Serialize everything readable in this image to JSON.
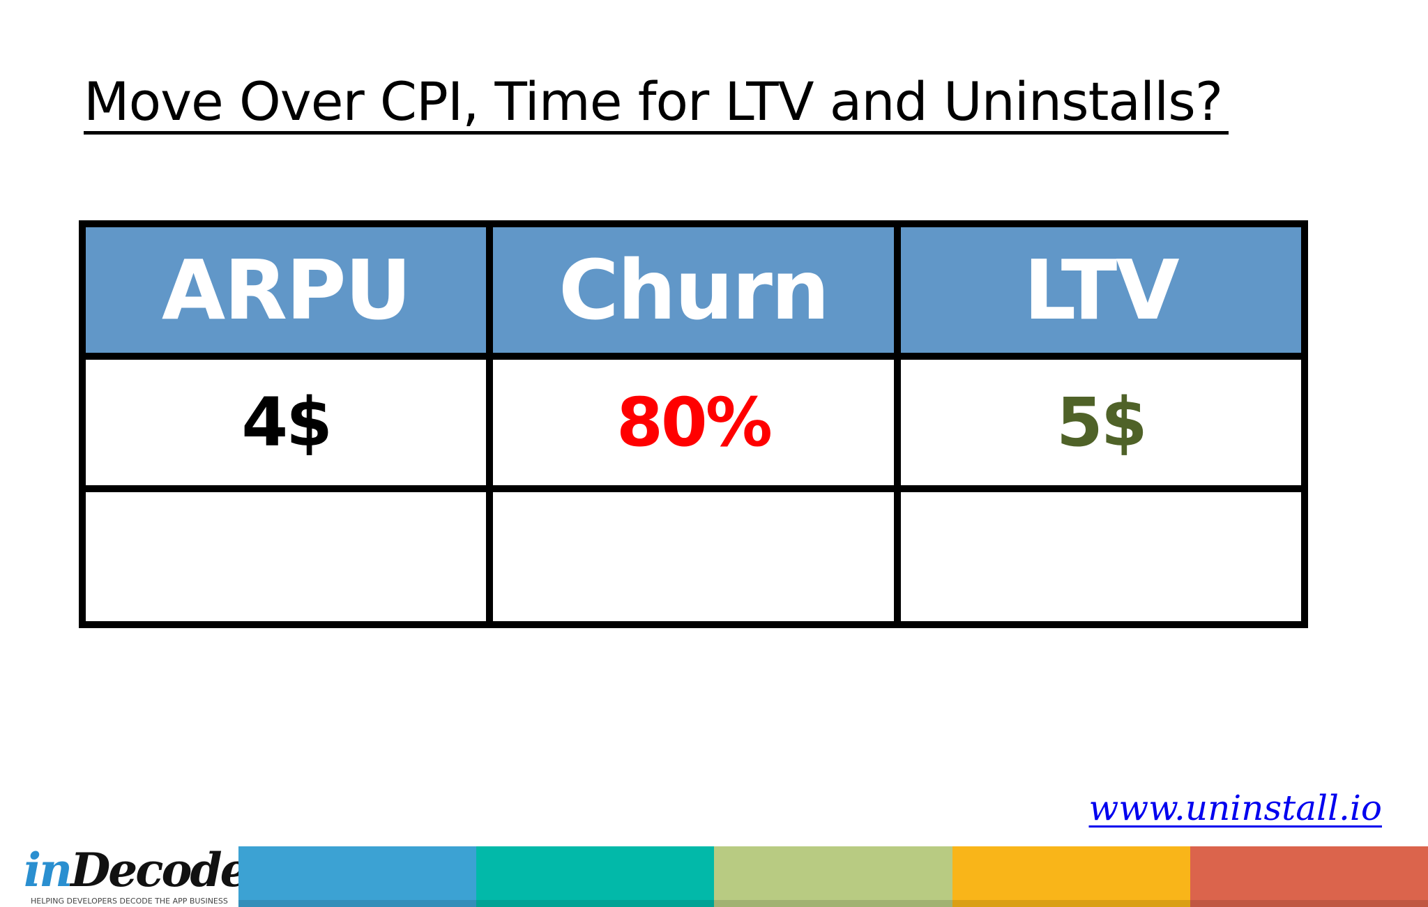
{
  "slide": {
    "title": "Move Over CPI, Time for LTV and Uninstalls?"
  },
  "table": {
    "header_bg": "#6197c8",
    "headers": [
      "ARPU",
      "Churn",
      "LTV"
    ],
    "values": [
      {
        "text": "4$",
        "color": "#000000"
      },
      {
        "text": "80%",
        "color": "#ff0000"
      },
      {
        "text": "5$",
        "color": "#4f6228"
      }
    ]
  },
  "footer": {
    "website": "www.uninstall.io",
    "website_color": "#0000ee",
    "logo": {
      "part1": "in",
      "part2": "Decode",
      "tagline": "HELPING DEVELOPERS DECODE THE APP BUSINESS"
    },
    "color_bar": [
      "#3ca2d3",
      "#02b9a9",
      "#b8cb82",
      "#f9b519",
      "#db644c"
    ]
  }
}
